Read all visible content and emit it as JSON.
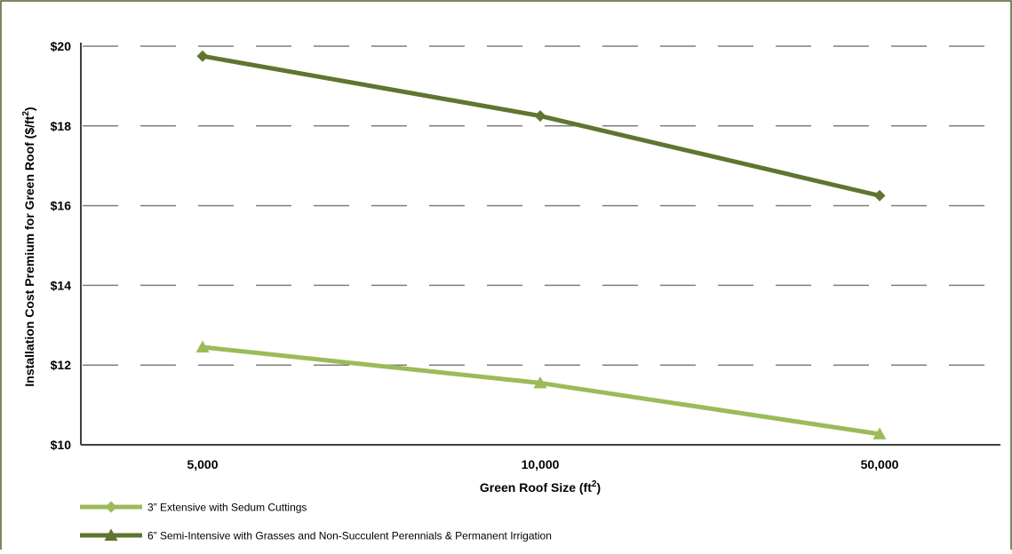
{
  "chart_data": {
    "type": "line",
    "title": "",
    "xlabel": "Green Roof Size (ft",
    "xlabel_sup": "2",
    "xlabel_end": ")",
    "ylabel": "Installation Cost Premium for Green Roof ($/ft",
    "ylabel_sup": "2",
    "ylabel_end": ")",
    "categories": [
      "5,000",
      "10,000",
      "50,000"
    ],
    "ylim": [
      10,
      20
    ],
    "yticks": [
      10,
      12,
      14,
      16,
      18,
      20
    ],
    "ytick_labels": [
      "$10",
      "$12",
      "$14",
      "$16",
      "$18",
      "$20"
    ],
    "grid": true,
    "legend_position": "bottom-left",
    "series": [
      {
        "name": "3” Extensive with Sedum Cuttings",
        "values": [
          12.45,
          11.55,
          10.27
        ],
        "color": "#9bbb59",
        "marker": "triangle",
        "legend_marker": "diamond"
      },
      {
        "name": "6” Semi-Intensive with Grasses and Non-Succulent Perennials & Permanent Irrigation",
        "values": [
          19.75,
          18.25,
          16.25
        ],
        "color": "#5f7530",
        "marker": "diamond",
        "legend_marker": "triangle"
      }
    ]
  },
  "colors": {
    "frame_border": "#4f6228",
    "grid": "#7f7f7f",
    "axis": "#404040",
    "text": "#000000"
  }
}
